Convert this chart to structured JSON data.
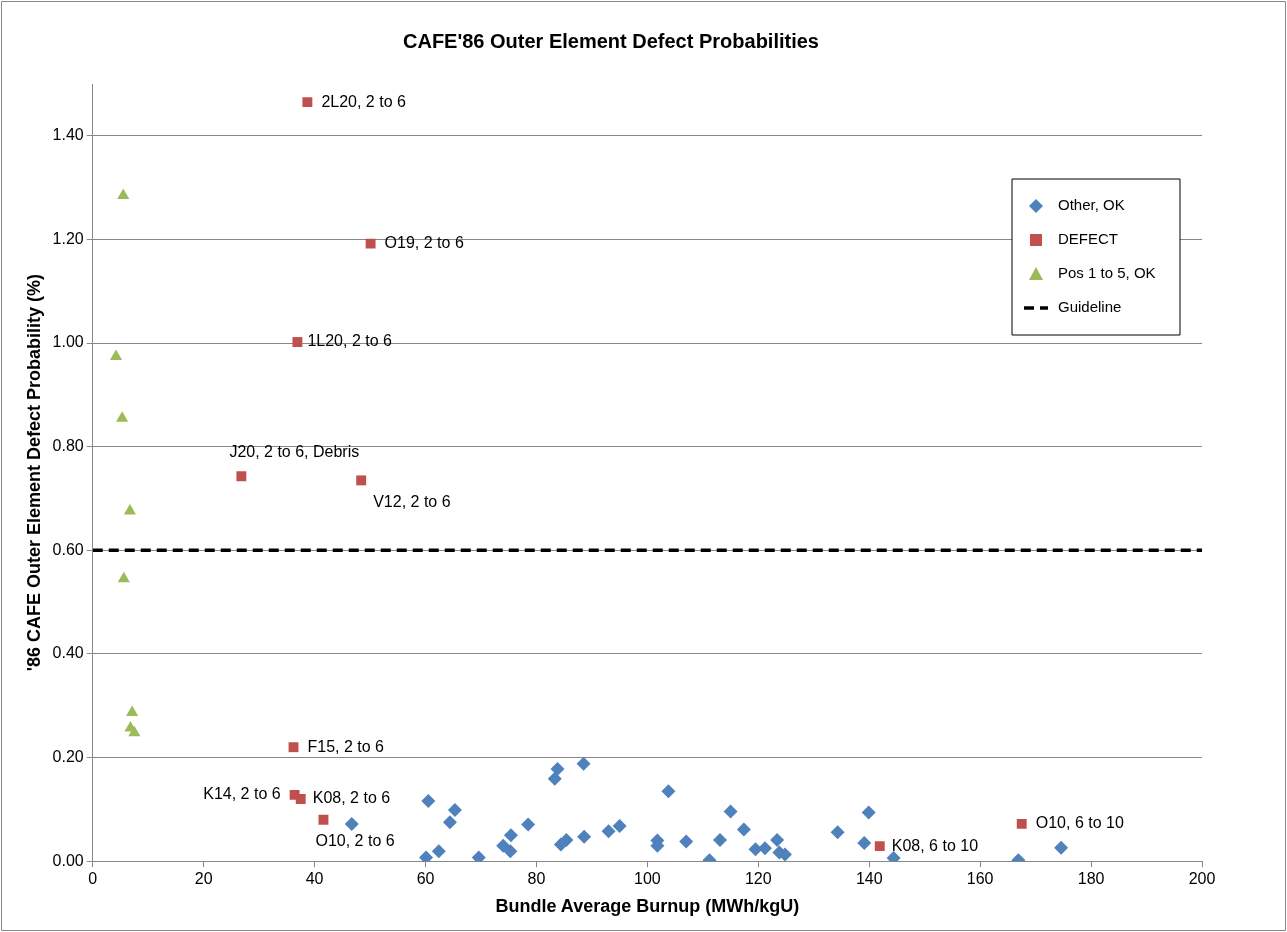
{
  "chart_data": {
    "type": "scatter",
    "title": "CAFE'86 Outer Element Defect Probabilities",
    "xlabel": "Bundle Average Burnup (MWh/kgU)",
    "ylabel": "'86 CAFE Outer Element Defect Probability (%)",
    "xlim": [
      0,
      200
    ],
    "xticks": [
      0,
      20,
      40,
      60,
      80,
      100,
      120,
      140,
      160,
      180,
      200
    ],
    "ylim": [
      0,
      1.5
    ],
    "yticks": [
      {
        "value": 0,
        "label": "0.00"
      },
      {
        "value": 0.2,
        "label": "0.20"
      },
      {
        "value": 0.4,
        "label": "0.40"
      },
      {
        "value": 0.6,
        "label": "0.60"
      },
      {
        "value": 0.8,
        "label": "0.80"
      },
      {
        "value": 1.0,
        "label": "1.00"
      },
      {
        "value": 1.2,
        "label": "1.20"
      },
      {
        "value": 1.4,
        "label": "1.40"
      }
    ],
    "grid": "y",
    "legend": "top right",
    "series": [
      {
        "name": "Other, OK",
        "color": "#4f81bd",
        "marker": "diamond",
        "x": [
          46.7,
          60.5,
          65.3,
          64.4,
          60.1,
          62.4,
          69.6,
          75.4,
          74.0,
          75.3,
          78.5,
          83.3,
          83.8,
          88.5,
          84.4,
          85.4,
          88.2,
          88.6,
          93.0,
          95.0,
          103.8,
          101.8,
          101.8,
          107.0,
          111.2,
          113.1,
          115.0,
          117.4,
          119.5,
          121.2,
          123.4,
          123.8,
          124.8,
          134.3,
          139.9,
          139.1,
          144.4,
          166.9,
          174.6
        ],
        "values": [
          0.072,
          0.116,
          0.099,
          0.075,
          0.007,
          0.019,
          0.007,
          0.05,
          0.03,
          0.019,
          0.071,
          0.159,
          0.178,
          0.188,
          0.032,
          0.041,
          null,
          0.047,
          0.058,
          0.068,
          0.135,
          0.04,
          0.03,
          0.038,
          0.002,
          0.041,
          0.096,
          0.061,
          0.023,
          0.025,
          0.041,
          0.017,
          0.013,
          0.056,
          0.094,
          0.035,
          0.006,
          0.002,
          0.026
        ]
      },
      {
        "name": "DEFECT",
        "color": "#c0504d",
        "marker": "square",
        "x": [
          38.7,
          50.1,
          36.9,
          26.8,
          48.4,
          36.2,
          36.4,
          37.5,
          41.6,
          141.9,
          167.5
        ],
        "values": [
          1.465,
          1.192,
          1.002,
          0.743,
          0.735,
          0.22,
          0.128,
          0.12,
          0.08,
          0.029,
          0.072
        ]
      },
      {
        "name": "Pos 1 to 5, OK",
        "color": "#9bbb59",
        "marker": "triangle",
        "x": [
          5.5,
          4.2,
          5.3,
          6.7,
          5.6,
          7.1,
          6.8,
          7.5
        ],
        "values": [
          1.285,
          0.974,
          0.855,
          0.676,
          0.545,
          0.287,
          0.257,
          0.248
        ]
      },
      {
        "name": "Guideline",
        "type": "line",
        "color": "#000000",
        "marker": "none",
        "line_style": "dashed",
        "x": [
          0,
          200
        ],
        "values": [
          0.6,
          0.6
        ]
      }
    ],
    "annotations": [
      {
        "text": "2L20, 2 to 6",
        "x": 38.7,
        "y": 1.465
      },
      {
        "text": "O19, 2 to 6",
        "x": 50.1,
        "y": 1.192
      },
      {
        "text": "1L20, 2 to 6",
        "x": 36.9,
        "y": 1.002
      },
      {
        "text": "J20, 2 to 6, Debris",
        "x": 26.8,
        "y": 0.743
      },
      {
        "text": "V12, 2 to 6",
        "x": 48.4,
        "y": 0.735
      },
      {
        "text": "F15, 2 to 6",
        "x": 36.2,
        "y": 0.22
      },
      {
        "text": "K14, 2 to 6",
        "x": 36.4,
        "y": 0.128
      },
      {
        "text": "K08, 2 to 6",
        "x": 37.5,
        "y": 0.12
      },
      {
        "text": "O10, 2 to 6",
        "x": 41.6,
        "y": 0.08
      },
      {
        "text": "K08, 6 to 10",
        "x": 141.9,
        "y": 0.029
      },
      {
        "text": "O10, 6 to 10",
        "x": 167.5,
        "y": 0.072
      }
    ]
  }
}
